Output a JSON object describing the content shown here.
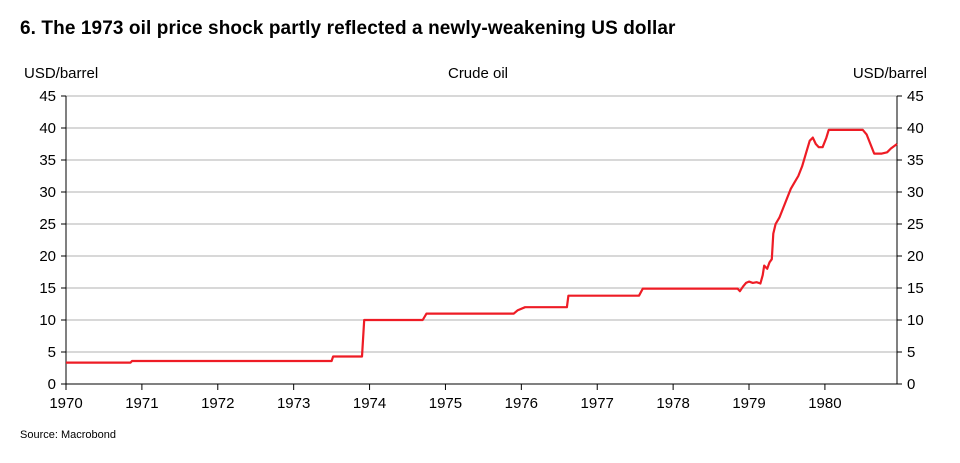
{
  "title": "6.  The 1973 oil price shock partly reflected a newly-weakening US dollar",
  "source": "Source: Macrobond",
  "chart_data": {
    "type": "line",
    "chart_title": "Crude oil",
    "ylabel_left": "USD/barrel",
    "ylabel_right": "USD/barrel",
    "ylim": [
      0,
      45
    ],
    "yticks": [
      0,
      5,
      10,
      15,
      20,
      25,
      30,
      35,
      40,
      45
    ],
    "xlim": [
      1970,
      1980.95
    ],
    "xticks": [
      1970,
      1971,
      1972,
      1973,
      1974,
      1975,
      1976,
      1977,
      1978,
      1979,
      1980
    ],
    "grid": true,
    "line_color": "#ee1c25",
    "series": [
      {
        "points": [
          [
            1970.0,
            3.35
          ],
          [
            1970.85,
            3.35
          ],
          [
            1970.87,
            3.6
          ],
          [
            1973.5,
            3.6
          ],
          [
            1973.52,
            4.3
          ],
          [
            1973.9,
            4.3
          ],
          [
            1973.93,
            10.0
          ],
          [
            1974.7,
            10.0
          ],
          [
            1974.75,
            11.0
          ],
          [
            1975.9,
            11.0
          ],
          [
            1975.95,
            11.5
          ],
          [
            1976.05,
            12.0
          ],
          [
            1976.6,
            12.0
          ],
          [
            1976.62,
            13.8
          ],
          [
            1977.55,
            13.8
          ],
          [
            1977.6,
            14.9
          ],
          [
            1978.85,
            14.9
          ],
          [
            1978.88,
            14.5
          ],
          [
            1978.92,
            15.2
          ],
          [
            1978.96,
            15.8
          ],
          [
            1979.0,
            16.0
          ],
          [
            1979.05,
            15.8
          ],
          [
            1979.1,
            15.9
          ],
          [
            1979.15,
            15.7
          ],
          [
            1979.18,
            17.0
          ],
          [
            1979.2,
            18.5
          ],
          [
            1979.24,
            18.0
          ],
          [
            1979.27,
            19.0
          ],
          [
            1979.3,
            19.5
          ],
          [
            1979.32,
            23.5
          ],
          [
            1979.35,
            25.0
          ],
          [
            1979.4,
            26.0
          ],
          [
            1979.45,
            27.5
          ],
          [
            1979.5,
            29.0
          ],
          [
            1979.55,
            30.5
          ],
          [
            1979.6,
            31.5
          ],
          [
            1979.65,
            32.5
          ],
          [
            1979.7,
            34.0
          ],
          [
            1979.75,
            36.0
          ],
          [
            1979.8,
            38.0
          ],
          [
            1979.84,
            38.5
          ],
          [
            1979.88,
            37.5
          ],
          [
            1979.92,
            37.0
          ],
          [
            1979.97,
            37.0
          ],
          [
            1980.02,
            38.5
          ],
          [
            1980.05,
            39.7
          ],
          [
            1980.5,
            39.7
          ],
          [
            1980.55,
            39.0
          ],
          [
            1980.6,
            37.5
          ],
          [
            1980.65,
            36.0
          ],
          [
            1980.75,
            36.0
          ],
          [
            1980.82,
            36.2
          ],
          [
            1980.87,
            36.8
          ],
          [
            1980.95,
            37.5
          ]
        ]
      }
    ]
  }
}
